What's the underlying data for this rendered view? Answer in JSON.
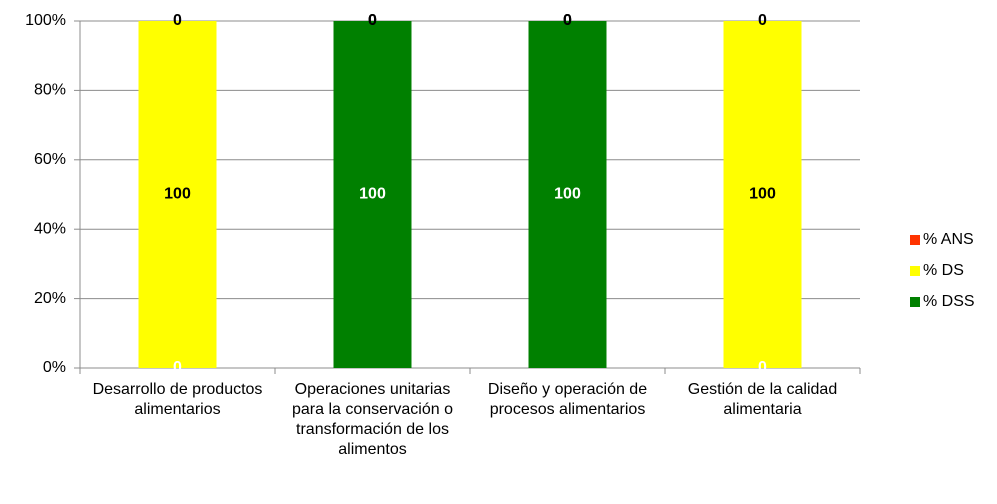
{
  "chart_data": {
    "type": "stacked_bar",
    "categories": [
      "Desarrollo de productos alimentarios",
      "Operaciones unitarias para la conservación o transformación de los alimentos",
      "Diseño y operación de procesos alimentarios",
      "Gestión de la calidad alimentaria"
    ],
    "series": [
      {
        "name": "% ANS",
        "color": "#ff3300",
        "label_color": "#000000",
        "values": [
          0,
          0,
          0,
          0
        ]
      },
      {
        "name": "% DS",
        "color": "#ffff00",
        "label_color": "#000000",
        "values": [
          100,
          0,
          0,
          100
        ]
      },
      {
        "name": "% DSS",
        "color": "#008000",
        "label_color": "#ffffff",
        "values": [
          0,
          100,
          100,
          0
        ]
      }
    ],
    "ylim": [
      0,
      100
    ],
    "yticks": [
      {
        "value": 0,
        "label": "0%"
      },
      {
        "value": 20,
        "label": "20%"
      },
      {
        "value": 40,
        "label": "40%"
      },
      {
        "value": 60,
        "label": "60%"
      },
      {
        "value": 80,
        "label": "80%"
      },
      {
        "value": 100,
        "label": "100%"
      }
    ],
    "grid": true,
    "legend": "right"
  }
}
